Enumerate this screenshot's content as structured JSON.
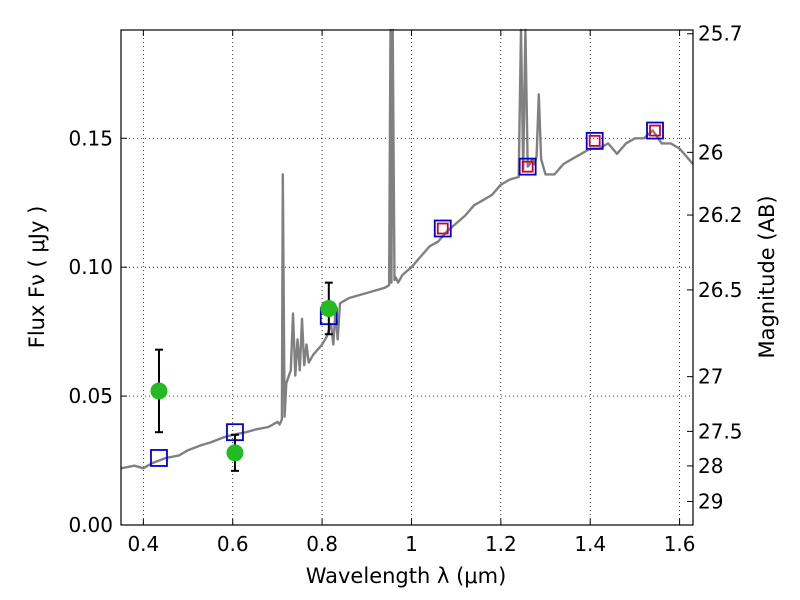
{
  "chart_data": {
    "type": "scatter",
    "xlabel": "Wavelength  λ (μm)",
    "ylabel": "Flux  Fν  ( μJy )",
    "y2label": "Magnitude (AB)",
    "xlim": [
      0.35,
      1.63
    ],
    "ylim": [
      0.0,
      0.192
    ],
    "grid": true,
    "x_ticks": [
      {
        "value": 0.4,
        "label": "0.4"
      },
      {
        "value": 0.6,
        "label": "0.6"
      },
      {
        "value": 0.8,
        "label": "0.8"
      },
      {
        "value": 1.0,
        "label": "1"
      },
      {
        "value": 1.2,
        "label": "1.2"
      },
      {
        "value": 1.4,
        "label": "1.4"
      },
      {
        "value": 1.6,
        "label": "1.6"
      }
    ],
    "y_ticks": [
      {
        "value": 0.0,
        "label": "0.00"
      },
      {
        "value": 0.05,
        "label": "0.05"
      },
      {
        "value": 0.1,
        "label": "0.10"
      },
      {
        "value": 0.15,
        "label": "0.15"
      }
    ],
    "y2_ticks": [
      {
        "mag": 25.7,
        "label": "25.7"
      },
      {
        "mag": 26,
        "label": "26"
      },
      {
        "mag": 26.2,
        "label": "26.2"
      },
      {
        "mag": 26.5,
        "label": "26.5"
      },
      {
        "mag": 27,
        "label": "27"
      },
      {
        "mag": 27.5,
        "label": "27.5"
      },
      {
        "mag": 28,
        "label": "28"
      },
      {
        "mag": 29,
        "label": "29"
      }
    ],
    "model_spectrum": {
      "color": "#808080",
      "x": [
        0.35,
        0.38,
        0.4,
        0.42,
        0.45,
        0.48,
        0.5,
        0.53,
        0.55,
        0.58,
        0.6,
        0.63,
        0.65,
        0.68,
        0.7,
        0.705,
        0.71,
        0.712,
        0.716,
        0.72,
        0.73,
        0.735,
        0.74,
        0.745,
        0.75,
        0.755,
        0.76,
        0.765,
        0.77,
        0.78,
        0.79,
        0.8,
        0.81,
        0.82,
        0.825,
        0.83,
        0.835,
        0.84,
        0.86,
        0.88,
        0.9,
        0.92,
        0.94,
        0.95,
        0.953,
        0.955,
        0.958,
        0.962,
        0.965,
        0.97,
        0.98,
        1.0,
        1.02,
        1.04,
        1.06,
        1.08,
        1.1,
        1.12,
        1.14,
        1.16,
        1.18,
        1.2,
        1.22,
        1.24,
        1.245,
        1.25,
        1.255,
        1.26,
        1.265,
        1.27,
        1.275,
        1.28,
        1.285,
        1.29,
        1.3,
        1.32,
        1.34,
        1.36,
        1.38,
        1.4,
        1.42,
        1.44,
        1.46,
        1.48,
        1.5,
        1.52,
        1.54,
        1.56,
        1.58,
        1.6,
        1.62,
        1.63
      ],
      "y": [
        0.022,
        0.023,
        0.022,
        0.024,
        0.026,
        0.027,
        0.029,
        0.031,
        0.032,
        0.034,
        0.035,
        0.036,
        0.037,
        0.038,
        0.04,
        0.039,
        0.041,
        0.136,
        0.042,
        0.055,
        0.06,
        0.082,
        0.058,
        0.072,
        0.06,
        0.08,
        0.062,
        0.07,
        0.063,
        0.066,
        0.068,
        0.07,
        0.073,
        0.078,
        0.07,
        0.083,
        0.072,
        0.086,
        0.088,
        0.089,
        0.09,
        0.091,
        0.092,
        0.093,
        0.192,
        0.094,
        0.192,
        0.095,
        0.096,
        0.094,
        0.097,
        0.1,
        0.104,
        0.108,
        0.11,
        0.114,
        0.117,
        0.12,
        0.124,
        0.126,
        0.128,
        0.132,
        0.134,
        0.135,
        0.192,
        0.138,
        0.192,
        0.139,
        0.14,
        0.142,
        0.14,
        0.143,
        0.167,
        0.142,
        0.136,
        0.136,
        0.14,
        0.142,
        0.144,
        0.146,
        0.146,
        0.148,
        0.144,
        0.148,
        0.15,
        0.15,
        0.153,
        0.148,
        0.148,
        0.146,
        0.142,
        0.14
      ]
    },
    "series": [
      {
        "marker": "open-square",
        "color": "#0000cc",
        "x": [
          0.435,
          0.605,
          0.815,
          1.07,
          1.26,
          1.41,
          1.545
        ],
        "y": [
          0.026,
          0.036,
          0.081,
          0.115,
          0.139,
          0.149,
          0.153
        ]
      },
      {
        "marker": "open-square",
        "color": "#cc0033",
        "x": [
          1.07,
          1.26,
          1.41,
          1.545
        ],
        "y": [
          0.115,
          0.139,
          0.149,
          0.153
        ]
      },
      {
        "marker": "filled-circle",
        "color": "#22bb22",
        "x": [
          0.435,
          0.605,
          0.815
        ],
        "y": [
          0.052,
          0.028,
          0.084
        ],
        "err": [
          0.016,
          0.007,
          0.01
        ]
      }
    ]
  }
}
